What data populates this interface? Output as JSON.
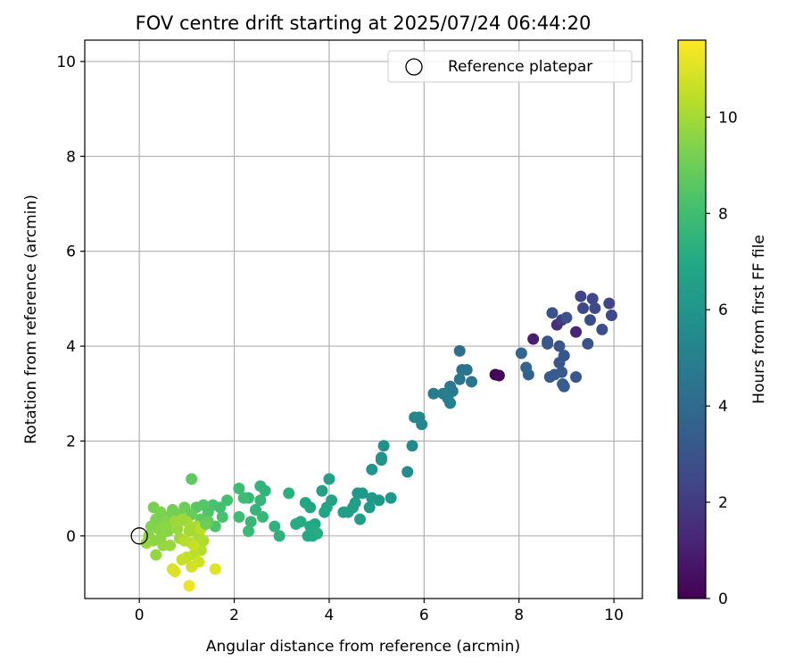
{
  "chart_data": {
    "type": "scatter",
    "title": "FOV centre drift starting at 2025/07/24 06:44:20",
    "xlabel": "Angular distance from reference (arcmin)",
    "ylabel": "Rotation from reference (arcmin)",
    "xlim": [
      -1.15,
      10.6
    ],
    "ylim": [
      -1.32,
      10.45
    ],
    "xticks": [
      0,
      2,
      4,
      6,
      8,
      10
    ],
    "yticks": [
      0,
      2,
      4,
      6,
      8,
      10
    ],
    "grid": true,
    "legend": {
      "location": "upper right",
      "entries": [
        {
          "label": "Reference platepar",
          "marker": "open-circle"
        }
      ]
    },
    "colorbar": {
      "label": "Hours from first FF file",
      "colormap": "viridis",
      "range": [
        0,
        11.6
      ],
      "ticks": [
        0,
        2,
        4,
        6,
        8,
        10
      ]
    },
    "reference_point": {
      "x": 0,
      "y": 0,
      "label": "Reference platepar"
    },
    "series": [
      {
        "colored_by": "Hours from first FF file",
        "points": [
          [
            7.5,
            3.4,
            0.1
          ],
          [
            7.58,
            3.38,
            0.2
          ],
          [
            8.3,
            4.15,
            1.0
          ],
          [
            9.2,
            4.3,
            1.2
          ],
          [
            8.8,
            4.45,
            1.6
          ],
          [
            8.9,
            4.55,
            2.0
          ],
          [
            9.3,
            5.05,
            2.3
          ],
          [
            9.55,
            5.0,
            2.4
          ],
          [
            9.9,
            4.9,
            2.4
          ],
          [
            9.95,
            4.65,
            2.5
          ],
          [
            9.6,
            4.8,
            2.6
          ],
          [
            9.5,
            4.55,
            2.7
          ],
          [
            9.75,
            4.35,
            2.8
          ],
          [
            9.45,
            4.05,
            2.9
          ],
          [
            9.0,
            4.6,
            2.9
          ],
          [
            8.7,
            4.7,
            3.0
          ],
          [
            8.6,
            4.1,
            3.0
          ],
          [
            8.85,
            4.0,
            3.1
          ],
          [
            8.95,
            3.8,
            3.1
          ],
          [
            8.85,
            3.65,
            3.2
          ],
          [
            9.2,
            3.35,
            3.2
          ],
          [
            8.9,
            3.45,
            3.3
          ],
          [
            8.75,
            3.4,
            3.3
          ],
          [
            8.65,
            3.35,
            3.3
          ],
          [
            8.95,
            3.15,
            3.4
          ],
          [
            8.92,
            3.2,
            3.4
          ],
          [
            8.2,
            3.4,
            3.6
          ],
          [
            8.15,
            3.55,
            3.7
          ],
          [
            8.05,
            3.85,
            3.8
          ],
          [
            9.35,
            4.8,
            2.5
          ],
          [
            8.6,
            4.05,
            3.2
          ],
          [
            6.75,
            3.9,
            4.2
          ],
          [
            6.8,
            3.5,
            4.3
          ],
          [
            6.9,
            3.5,
            4.4
          ],
          [
            7.0,
            3.25,
            4.5
          ],
          [
            6.75,
            3.3,
            4.5
          ],
          [
            6.55,
            3.15,
            4.6
          ],
          [
            6.6,
            3.05,
            4.7
          ],
          [
            6.4,
            3.0,
            4.8
          ],
          [
            6.2,
            3.0,
            4.8
          ],
          [
            6.5,
            2.9,
            4.9
          ],
          [
            6.55,
            2.8,
            5.0
          ],
          [
            5.8,
            2.5,
            5.2
          ],
          [
            5.9,
            2.5,
            5.3
          ],
          [
            5.95,
            2.35,
            5.3
          ],
          [
            5.75,
            1.9,
            5.5
          ],
          [
            5.65,
            1.35,
            5.6
          ],
          [
            5.15,
            1.9,
            5.8
          ],
          [
            5.1,
            1.6,
            5.9
          ],
          [
            5.1,
            1.65,
            5.9
          ],
          [
            4.9,
            1.4,
            6.0
          ],
          [
            5.3,
            0.8,
            6.1
          ],
          [
            5.05,
            0.75,
            6.1
          ],
          [
            4.9,
            0.8,
            6.2
          ],
          [
            4.7,
            0.9,
            6.2
          ],
          [
            4.6,
            0.9,
            6.3
          ],
          [
            4.85,
            0.6,
            6.3
          ],
          [
            4.55,
            0.7,
            6.4
          ],
          [
            4.5,
            0.6,
            6.4
          ],
          [
            4.65,
            0.35,
            6.5
          ],
          [
            4.4,
            0.5,
            6.5
          ],
          [
            4.3,
            0.5,
            6.5
          ],
          [
            4.0,
            1.2,
            6.6
          ],
          [
            3.85,
            0.95,
            6.6
          ],
          [
            4.05,
            0.75,
            6.7
          ],
          [
            3.95,
            0.6,
            6.7
          ],
          [
            3.9,
            0.5,
            6.8
          ],
          [
            3.6,
            0.6,
            6.8
          ],
          [
            3.5,
            0.7,
            6.9
          ],
          [
            3.7,
            0.25,
            6.9
          ],
          [
            3.6,
            0.2,
            7.0
          ],
          [
            3.55,
            0.0,
            7.0
          ],
          [
            3.65,
            0.0,
            7.0
          ],
          [
            3.75,
            0.05,
            7.1
          ],
          [
            3.4,
            0.3,
            7.1
          ],
          [
            3.3,
            0.25,
            7.1
          ],
          [
            3.15,
            0.9,
            7.3
          ],
          [
            2.95,
            0.0,
            7.4
          ],
          [
            2.85,
            0.2,
            7.4
          ],
          [
            2.55,
            1.05,
            7.5
          ],
          [
            2.65,
            0.95,
            7.5
          ],
          [
            2.55,
            0.75,
            7.6
          ],
          [
            2.45,
            0.55,
            7.6
          ],
          [
            2.6,
            0.4,
            7.7
          ],
          [
            2.3,
            0.8,
            7.7
          ],
          [
            2.35,
            0.3,
            7.7
          ],
          [
            2.3,
            0.1,
            7.8
          ],
          [
            2.1,
            1.0,
            7.9
          ],
          [
            2.2,
            0.8,
            7.9
          ],
          [
            2.1,
            0.4,
            8.0
          ],
          [
            1.85,
            0.75,
            8.1
          ],
          [
            1.7,
            0.6,
            8.1
          ],
          [
            1.55,
            0.65,
            8.2
          ],
          [
            1.75,
            0.4,
            8.2
          ],
          [
            1.6,
            0.2,
            8.3
          ],
          [
            1.45,
            0.5,
            8.4
          ],
          [
            1.35,
            0.65,
            8.5
          ],
          [
            1.2,
            0.6,
            8.6
          ],
          [
            1.1,
            1.2,
            8.7
          ],
          [
            1.3,
            0.35,
            8.7
          ],
          [
            1.45,
            0.3,
            8.8
          ],
          [
            1.1,
            0.45,
            8.9
          ],
          [
            0.95,
            0.6,
            9.0
          ],
          [
            0.7,
            0.55,
            9.1
          ],
          [
            0.85,
            0.45,
            9.1
          ],
          [
            0.6,
            0.4,
            9.2
          ],
          [
            0.3,
            0.6,
            9.2
          ],
          [
            0.45,
            0.5,
            9.3
          ],
          [
            0.35,
            0.35,
            9.3
          ],
          [
            0.25,
            0.2,
            9.4
          ],
          [
            0.55,
            0.3,
            9.4
          ],
          [
            0.4,
            0.15,
            9.5
          ],
          [
            0.6,
            0.1,
            9.5
          ],
          [
            0.2,
            0.0,
            9.5
          ],
          [
            0.45,
            -0.05,
            9.6
          ],
          [
            0.3,
            -0.1,
            9.6
          ],
          [
            0.15,
            -0.15,
            9.7
          ],
          [
            0.5,
            -0.2,
            9.7
          ],
          [
            0.35,
            -0.4,
            9.7
          ],
          [
            0.65,
            -0.2,
            9.8
          ],
          [
            0.8,
            0.15,
            9.8
          ],
          [
            0.85,
            -0.05,
            9.9
          ],
          [
            0.75,
            0.3,
            9.9
          ],
          [
            1.0,
            0.3,
            10.0
          ],
          [
            1.05,
            0.1,
            10.0
          ],
          [
            1.2,
            0.2,
            10.1
          ],
          [
            1.25,
            0.0,
            10.1
          ],
          [
            1.35,
            -0.1,
            10.2
          ],
          [
            1.1,
            -0.15,
            10.2
          ],
          [
            0.95,
            -0.1,
            10.3
          ],
          [
            1.3,
            -0.3,
            10.3
          ],
          [
            1.15,
            -0.4,
            10.4
          ],
          [
            1.0,
            -0.45,
            10.5
          ],
          [
            0.9,
            -0.5,
            10.6
          ],
          [
            1.25,
            -0.55,
            10.7
          ],
          [
            1.1,
            -0.65,
            10.8
          ],
          [
            0.7,
            -0.7,
            10.9
          ],
          [
            0.75,
            -0.75,
            11.0
          ],
          [
            1.6,
            -0.7,
            11.1
          ],
          [
            1.05,
            -1.05,
            11.3
          ],
          [
            1.15,
            -0.2,
            10.6
          ],
          [
            1.3,
            0.15,
            10.4
          ],
          [
            0.55,
            0.2,
            9.6
          ],
          [
            0.9,
            0.35,
            9.9
          ],
          [
            1.4,
            0.25,
            9.0
          ]
        ]
      }
    ]
  }
}
